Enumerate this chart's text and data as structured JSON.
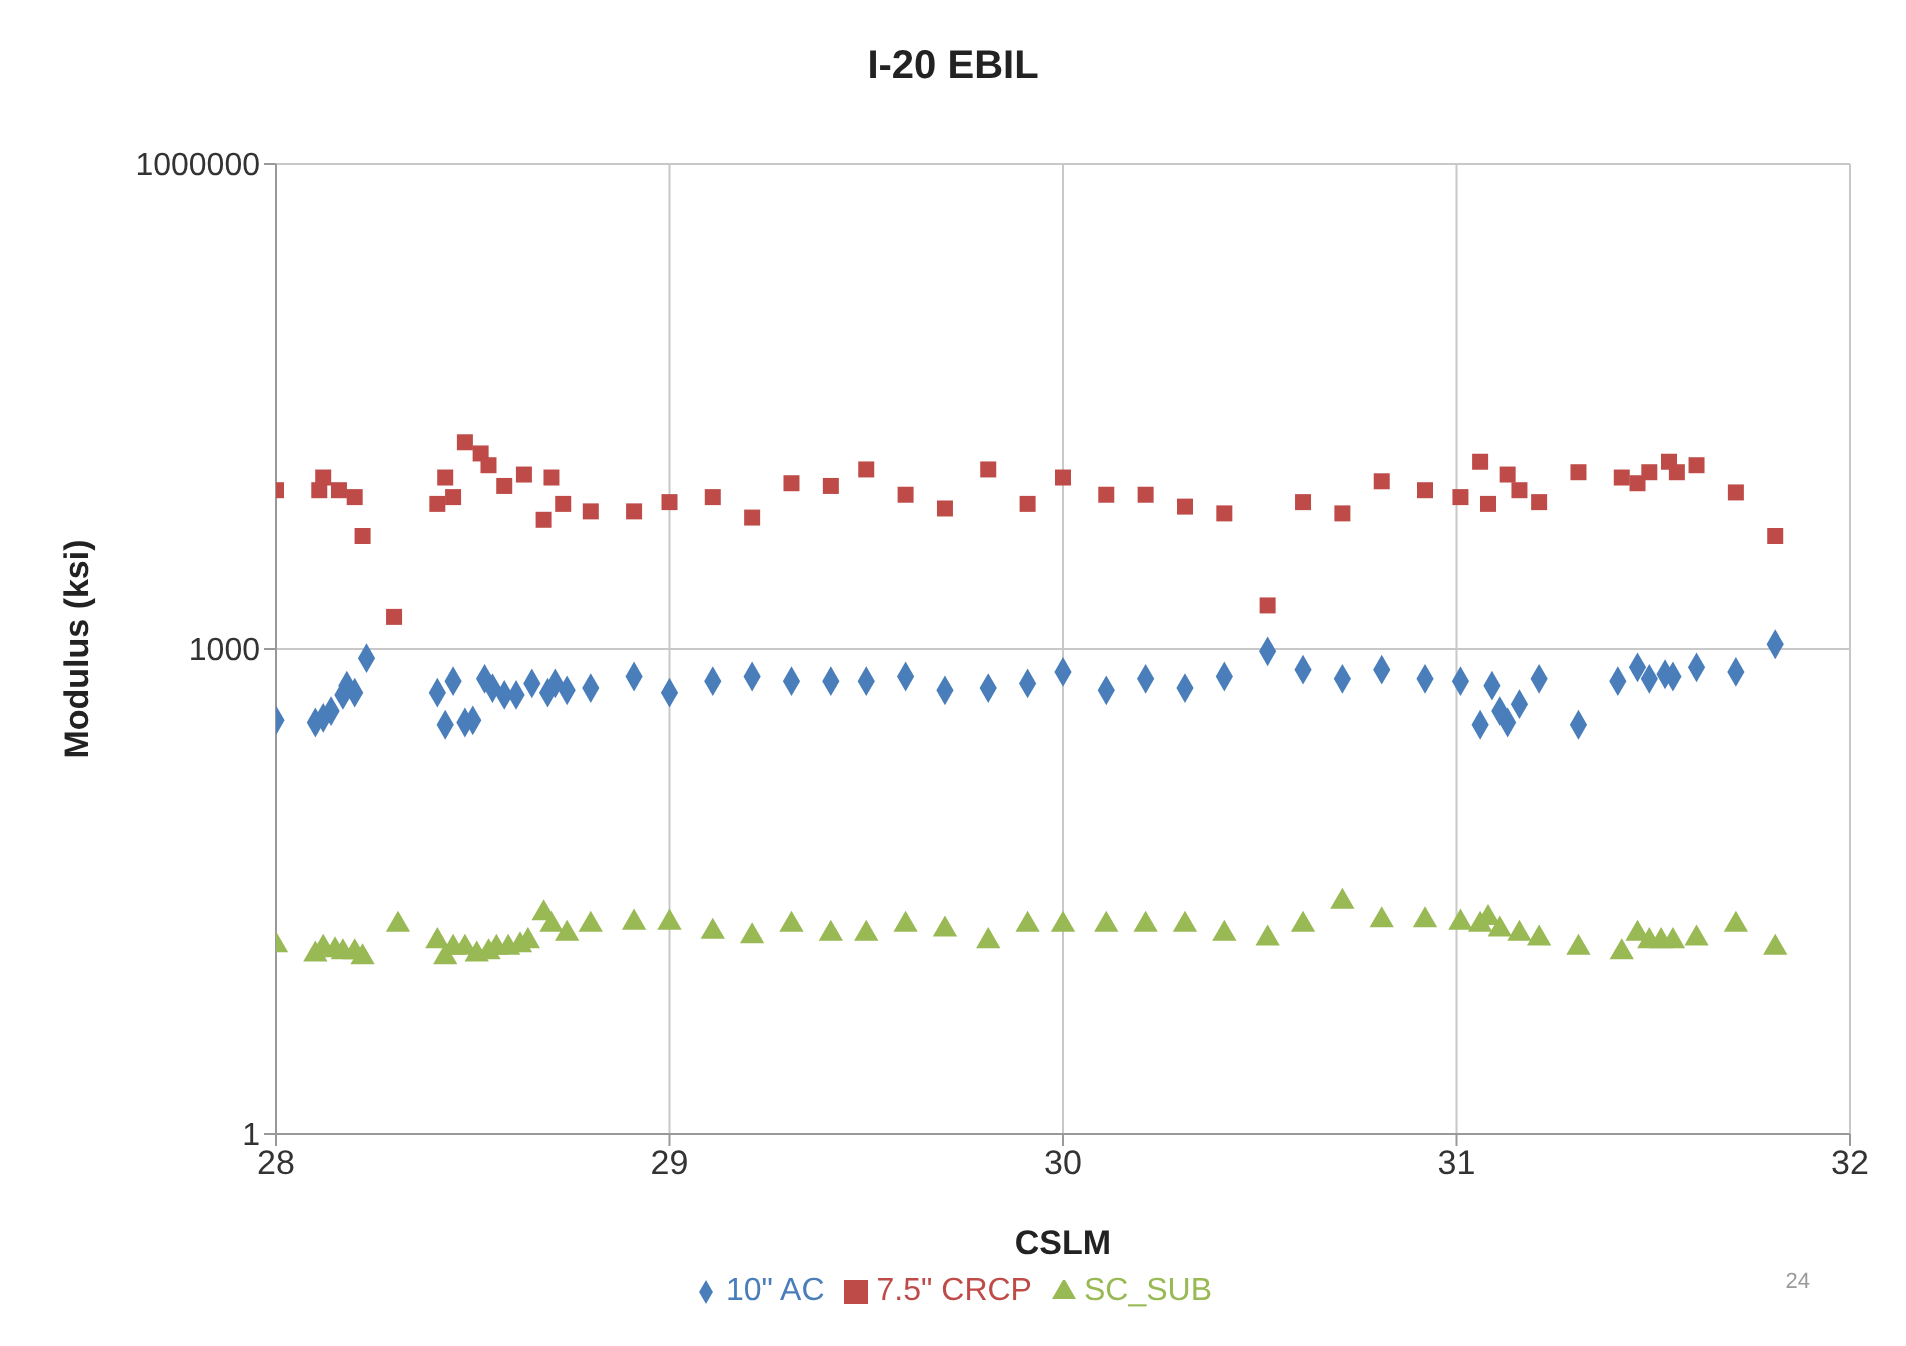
{
  "chart_data": {
    "type": "scatter",
    "title": "I-20 EBIL",
    "xlabel": "CSLM",
    "ylabel": "Modulus (ksi)",
    "xlim": [
      28,
      32
    ],
    "xticks": [
      28,
      29,
      30,
      31,
      32
    ],
    "ylim": [
      1,
      1000000
    ],
    "yticks": [
      1,
      1000,
      1000000
    ],
    "log": "y",
    "grid": true,
    "legend": "bottom",
    "annotations": [
      "24"
    ],
    "series": [
      {
        "name": "10\" AC",
        "color": "#4a7ebb",
        "marker": "diamond",
        "x": [
          28.0,
          28.1,
          28.12,
          28.14,
          28.17,
          28.18,
          28.2,
          28.23,
          28.41,
          28.43,
          28.45,
          28.48,
          28.5,
          28.53,
          28.55,
          28.58,
          28.61,
          28.65,
          28.69,
          28.71,
          28.74,
          28.8,
          28.91,
          29.0,
          29.11,
          29.21,
          29.31,
          29.41,
          29.5,
          29.6,
          29.7,
          29.81,
          29.91,
          30.0,
          30.11,
          30.21,
          30.31,
          30.41,
          30.52,
          30.61,
          30.71,
          30.81,
          30.92,
          31.01,
          31.06,
          31.09,
          31.11,
          31.13,
          31.16,
          31.21,
          31.31,
          31.41,
          31.46,
          31.49,
          31.53,
          31.55,
          31.61,
          31.71,
          31.81
        ],
        "values": [
          362,
          351,
          375,
          413,
          520,
          593,
          537,
          877,
          537,
          340,
          632,
          351,
          362,
          654,
          573,
          520,
          520,
          612,
          537,
          612,
          555,
          573,
          676,
          537,
          632,
          676,
          632,
          632,
          632,
          676,
          555,
          573,
          612,
          721,
          555,
          654,
          573,
          676,
          968,
          745,
          654,
          745,
          654,
          632,
          340,
          593,
          413,
          351,
          456,
          654,
          340,
          632,
          770,
          654,
          698,
          676,
          770,
          721,
          1070
        ]
      },
      {
        "name": "7.5\" CRCP",
        "color": "#be4b48",
        "marker": "square",
        "x": [
          28.0,
          28.11,
          28.12,
          28.16,
          28.2,
          28.22,
          28.3,
          28.41,
          28.43,
          28.45,
          28.48,
          28.52,
          28.54,
          28.58,
          28.63,
          28.68,
          28.7,
          28.73,
          28.8,
          28.91,
          29.0,
          29.11,
          29.21,
          29.31,
          29.41,
          29.5,
          29.6,
          29.7,
          29.81,
          29.91,
          30.0,
          30.11,
          30.21,
          30.31,
          30.41,
          30.52,
          30.61,
          30.71,
          30.81,
          30.92,
          31.01,
          31.06,
          31.08,
          31.13,
          31.16,
          31.21,
          31.31,
          31.42,
          31.46,
          31.49,
          31.54,
          31.56,
          31.61,
          31.71,
          31.81
        ],
        "values": [
          9600,
          9600,
          11500,
          9600,
          8700,
          5000,
          1580,
          7900,
          11500,
          8700,
          19000,
          16200,
          13700,
          10200,
          12000,
          6300,
          11500,
          7900,
          7100,
          7100,
          8100,
          8700,
          6500,
          10600,
          10200,
          12900,
          9000,
          7400,
          12900,
          7900,
          11500,
          9000,
          9000,
          7600,
          6900,
          1860,
          8100,
          6900,
          10900,
          9600,
          8700,
          14400,
          7900,
          12000,
          9600,
          8100,
          12400,
          11500,
          10600,
          12400,
          14400,
          12400,
          13700,
          9300,
          5000
        ]
      },
      {
        "name": "SC_SUB",
        "color": "#98b954",
        "marker": "triangle",
        "x": [
          28.0,
          28.1,
          28.12,
          28.15,
          28.17,
          28.2,
          28.22,
          28.31,
          28.41,
          28.43,
          28.45,
          28.48,
          28.51,
          28.54,
          28.56,
          28.59,
          28.62,
          28.64,
          28.68,
          28.7,
          28.74,
          28.8,
          28.91,
          29.0,
          29.11,
          29.21,
          29.31,
          29.41,
          29.5,
          29.6,
          29.7,
          29.81,
          29.91,
          30.0,
          30.11,
          30.21,
          30.31,
          30.41,
          30.52,
          30.61,
          30.71,
          30.81,
          30.92,
          31.01,
          31.06,
          31.08,
          31.11,
          31.16,
          31.21,
          31.31,
          31.42,
          31.46,
          31.49,
          31.52,
          31.55,
          31.61,
          31.71,
          31.81
        ],
        "values": [
          14.7,
          12.9,
          14.2,
          13.7,
          13.3,
          13.3,
          12.4,
          19.7,
          15.6,
          12.4,
          14.2,
          14.2,
          12.9,
          13.3,
          14.2,
          14.2,
          14.7,
          15.6,
          23.2,
          19.7,
          17.3,
          19.7,
          20.3,
          20.3,
          17.8,
          16.7,
          19.7,
          17.3,
          17.3,
          19.7,
          18.4,
          15.6,
          19.7,
          19.7,
          19.7,
          19.7,
          19.7,
          17.3,
          16.2,
          19.7,
          27.3,
          21.0,
          21.0,
          20.3,
          19.7,
          21.7,
          18.4,
          17.3,
          16.2,
          14.2,
          13.3,
          17.3,
          15.6,
          15.6,
          15.6,
          16.2,
          19.7,
          14.2
        ]
      }
    ]
  }
}
